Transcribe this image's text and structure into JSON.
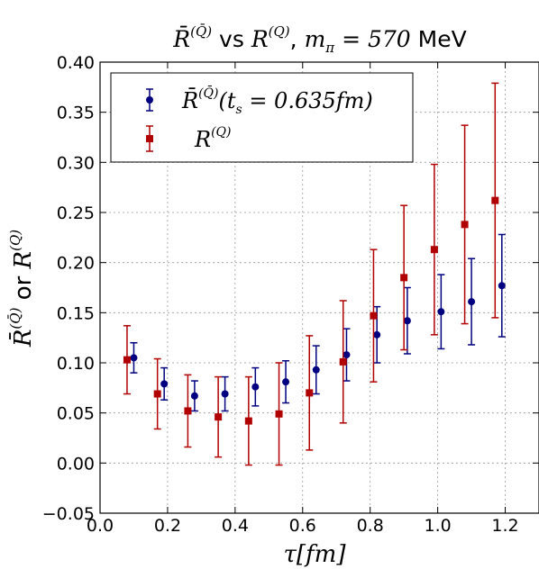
{
  "chart_data": {
    "type": "scatter",
    "title": "R̄^(Q̄) vs R^(Q), m_π = 570 MeV",
    "title_parts": {
      "r1": "R̄",
      "r1_sup": "(Q̄)",
      "vs": " vs ",
      "r2": "R",
      "r2_sup": "(Q)",
      "sep": ", ",
      "m": "m",
      "m_sub": "π",
      "eq": " = 570 ",
      "unit": "MeV"
    },
    "xlabel": "τ[fm]",
    "ylabel": "R̄^(Q̄) or R^(Q)",
    "ylabel_parts": {
      "r1": "R̄",
      "r1_sup": "(Q̄)",
      "or": " or ",
      "r2": "R",
      "r2_sup": "(Q)"
    },
    "xlim": [
      0.0,
      1.3
    ],
    "ylim": [
      -0.05,
      0.4
    ],
    "xticks": [
      0.0,
      0.2,
      0.4,
      0.6,
      0.8,
      1.0,
      1.2
    ],
    "yticks": [
      -0.05,
      0.0,
      0.05,
      0.1,
      0.15,
      0.2,
      0.25,
      0.3,
      0.35,
      0.4
    ],
    "xtick_labels": [
      "0.0",
      "0.2",
      "0.4",
      "0.6",
      "0.8",
      "1.0",
      "1.2"
    ],
    "ytick_labels": [
      "−0.05",
      "0.00",
      "0.05",
      "0.10",
      "0.15",
      "0.20",
      "0.25",
      "0.30",
      "0.35",
      "0.40"
    ],
    "grid": true,
    "legend_position": "top-left",
    "series": [
      {
        "name": "R̄^(Q̄)(t_s = 0.635fm)",
        "legend_parts": {
          "r": "R̄",
          "sup": "(Q̄)",
          "rest": "(t",
          "sub": "s",
          "tail": " = 0.635fm)"
        },
        "marker": "circle",
        "color": "#000080",
        "x": [
          0.1,
          0.19,
          0.28,
          0.37,
          0.46,
          0.55,
          0.64,
          0.73,
          0.82,
          0.91,
          1.01,
          1.1,
          1.19
        ],
        "y": [
          0.105,
          0.079,
          0.067,
          0.069,
          0.076,
          0.081,
          0.093,
          0.108,
          0.128,
          0.142,
          0.151,
          0.161,
          0.177
        ],
        "yerr": [
          0.015,
          0.016,
          0.015,
          0.017,
          0.019,
          0.021,
          0.024,
          0.026,
          0.028,
          0.033,
          0.037,
          0.043,
          0.051
        ]
      },
      {
        "name": "R^(Q)",
        "legend_parts": {
          "r": "R",
          "sup": "(Q)"
        },
        "marker": "square",
        "color": "#b00000",
        "x": [
          0.08,
          0.17,
          0.26,
          0.35,
          0.44,
          0.53,
          0.62,
          0.72,
          0.81,
          0.9,
          0.99,
          1.08,
          1.17
        ],
        "y": [
          0.103,
          0.069,
          0.052,
          0.046,
          0.042,
          0.049,
          0.07,
          0.101,
          0.147,
          0.185,
          0.213,
          0.238,
          0.262
        ],
        "yerr": [
          0.034,
          0.035,
          0.036,
          0.04,
          0.044,
          0.051,
          0.057,
          0.061,
          0.066,
          0.072,
          0.085,
          0.099,
          0.117
        ]
      }
    ]
  }
}
